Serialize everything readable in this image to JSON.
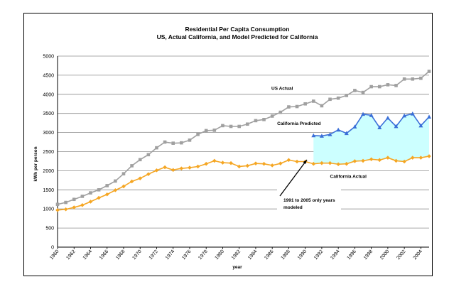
{
  "chart_data": {
    "type": "line",
    "title": "Residential Per Capita Consumption",
    "subtitle": "US, Actual California, and Model Predicted for California",
    "xlabel": "year",
    "ylabel": "kWh per person",
    "ylim": [
      0,
      5000
    ],
    "yticks": [
      "0",
      "500",
      "1000",
      "1500",
      "2000",
      "2500",
      "3000",
      "3500",
      "4000",
      "4500",
      "5000"
    ],
    "xlim": [
      1960,
      2005
    ],
    "xticks": [
      "1960",
      "1962",
      "1964",
      "1966",
      "1968",
      "1970",
      "1972",
      "1974",
      "1976",
      "1978",
      "1980",
      "1982",
      "1984",
      "1986",
      "1988",
      "1990",
      "1992",
      "1994",
      "1996",
      "1998",
      "2000",
      "2002",
      "2004"
    ],
    "grid": true,
    "series": [
      {
        "name": "US Actual",
        "color": "#a0a0a0",
        "marker": "square",
        "x": [
          1960,
          1961,
          1962,
          1963,
          1964,
          1965,
          1966,
          1967,
          1968,
          1969,
          1970,
          1971,
          1972,
          1973,
          1974,
          1975,
          1976,
          1977,
          1978,
          1979,
          1980,
          1981,
          1982,
          1983,
          1984,
          1985,
          1986,
          1987,
          1988,
          1989,
          1990,
          1991,
          1992,
          1993,
          1994,
          1995,
          1996,
          1997,
          1998,
          1999,
          2000,
          2001,
          2002,
          2003,
          2004,
          2005
        ],
        "values": [
          1120,
          1170,
          1250,
          1330,
          1420,
          1500,
          1610,
          1730,
          1920,
          2130,
          2290,
          2420,
          2600,
          2750,
          2720,
          2730,
          2800,
          2950,
          3050,
          3060,
          3180,
          3160,
          3160,
          3220,
          3310,
          3340,
          3430,
          3530,
          3670,
          3680,
          3750,
          3820,
          3700,
          3870,
          3900,
          3970,
          4100,
          4050,
          4200,
          4200,
          4250,
          4230,
          4400,
          4400,
          4420,
          4600
        ]
      },
      {
        "name": "California Actual",
        "color": "#f5a623",
        "marker": "diamond",
        "x": [
          1960,
          1961,
          1962,
          1963,
          1964,
          1965,
          1966,
          1967,
          1968,
          1969,
          1970,
          1971,
          1972,
          1973,
          1974,
          1975,
          1976,
          1977,
          1978,
          1979,
          1980,
          1981,
          1982,
          1983,
          1984,
          1985,
          1986,
          1987,
          1988,
          1989,
          1990,
          1991,
          1992,
          1993,
          1994,
          1995,
          1996,
          1997,
          1998,
          1999,
          2000,
          2001,
          2002,
          2003,
          2004,
          2005
        ],
        "values": [
          970,
          990,
          1040,
          1100,
          1190,
          1290,
          1380,
          1490,
          1590,
          1720,
          1800,
          1910,
          2010,
          2090,
          2020,
          2060,
          2080,
          2110,
          2180,
          2260,
          2210,
          2200,
          2110,
          2130,
          2190,
          2180,
          2140,
          2190,
          2280,
          2240,
          2240,
          2180,
          2200,
          2200,
          2170,
          2180,
          2250,
          2260,
          2300,
          2280,
          2340,
          2260,
          2240,
          2340,
          2340,
          2380
        ]
      },
      {
        "name": "California Predicted",
        "color": "#3a6fd8",
        "marker": "triangle",
        "x": [
          1991,
          1992,
          1993,
          1994,
          1995,
          1996,
          1997,
          1998,
          1999,
          2000,
          2001,
          2002,
          2003,
          2004,
          2005
        ],
        "values": [
          2920,
          2910,
          2950,
          3070,
          2980,
          3150,
          3480,
          3450,
          3130,
          3380,
          3160,
          3440,
          3490,
          3180,
          3410
        ]
      }
    ],
    "annotations": [
      {
        "text_lines": [
          "1991 to 2005 only years",
          "modeled"
        ]
      }
    ]
  }
}
